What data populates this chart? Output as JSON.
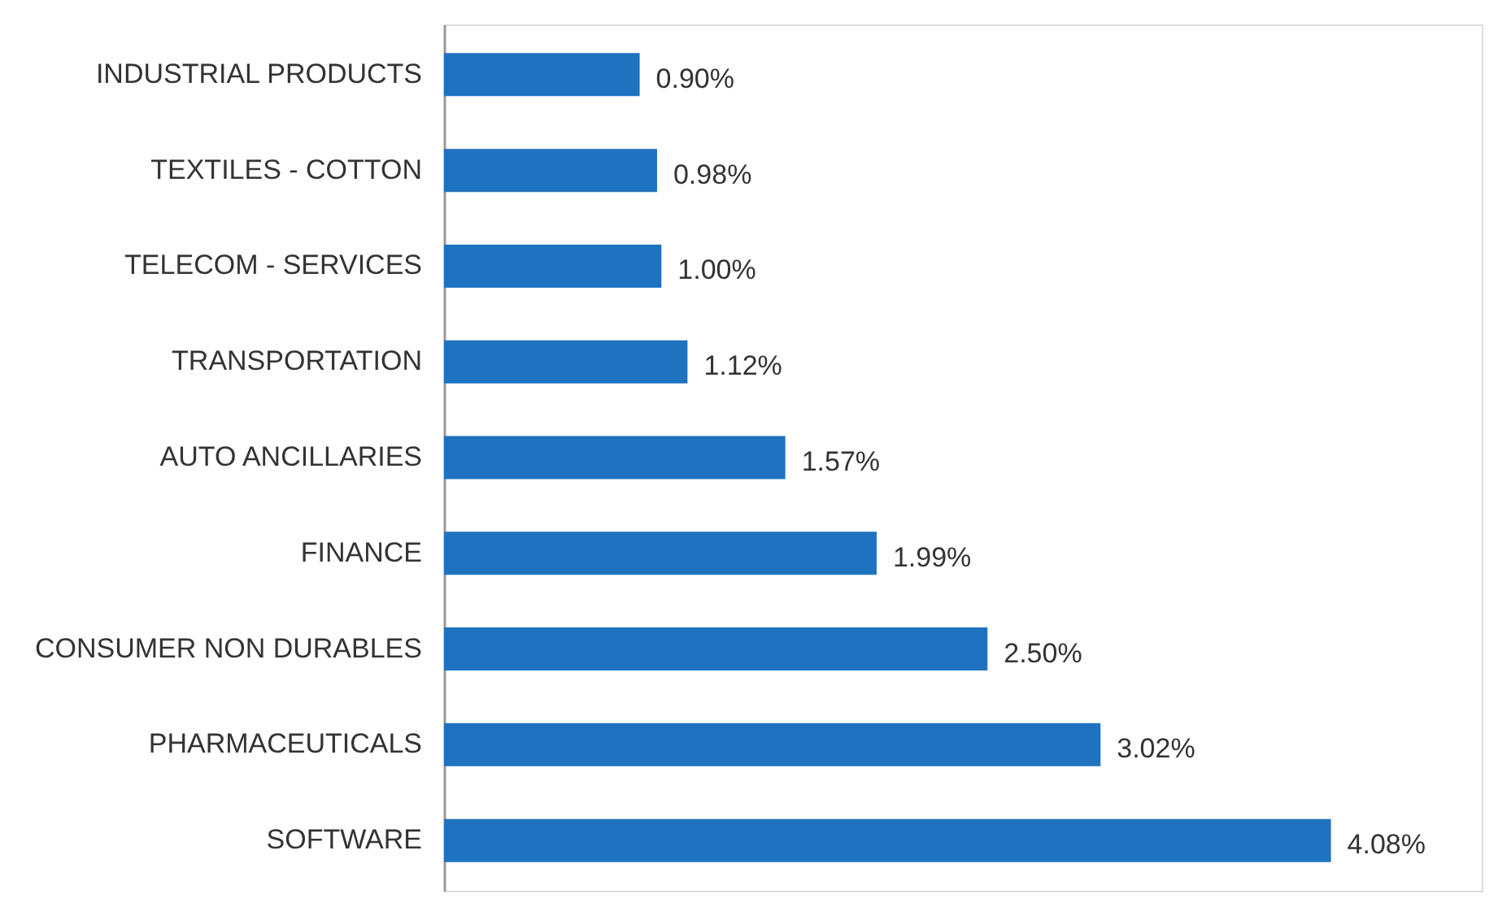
{
  "chart_data": {
    "type": "bar",
    "orientation": "horizontal",
    "categories": [
      "INDUSTRIAL PRODUCTS",
      "TEXTILES - COTTON",
      "TELECOM - SERVICES",
      "TRANSPORTATION",
      "AUTO ANCILLARIES",
      "FINANCE",
      "CONSUMER NON DURABLES",
      "PHARMACEUTICALS",
      "SOFTWARE"
    ],
    "values": [
      0.9,
      0.98,
      1.0,
      1.12,
      1.57,
      1.99,
      2.5,
      3.02,
      4.08
    ],
    "value_labels": [
      "0.90%",
      "0.98%",
      "1.00%",
      "1.12%",
      "1.57%",
      "1.99%",
      "2.50%",
      "3.02%",
      "4.08%"
    ],
    "color": "#1f72c0",
    "grid": false
  }
}
